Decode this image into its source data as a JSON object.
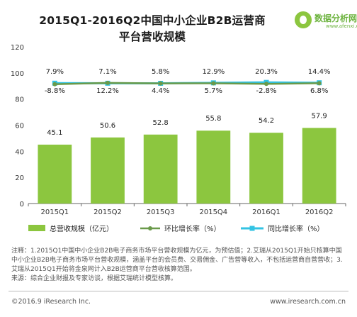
{
  "header": {
    "title_line1": "2015Q1-2016Q2中国中小企业B2B运营商",
    "title_line2": "平台营收规模"
  },
  "logo": {
    "name": "数据分析网",
    "url": "www.afenxi.com"
  },
  "chart_data": {
    "type": "bar",
    "categories": [
      "2015Q1",
      "2015Q2",
      "2015Q3",
      "2015Q4",
      "2016Q1",
      "2016Q2"
    ],
    "ylim": [
      0,
      120
    ],
    "yticks": [
      0,
      20,
      40,
      60,
      80,
      100,
      120
    ],
    "grid": false,
    "legend_position": "bottom",
    "series": [
      {
        "name": "总营收规模（亿元）",
        "kind": "bar",
        "color": "#8cc63f",
        "values": [
          45.1,
          50.6,
          52.8,
          55.8,
          54.2,
          57.9
        ],
        "labels": [
          "45.1",
          "50.6",
          "52.8",
          "55.8",
          "54.2",
          "57.9"
        ]
      },
      {
        "name": "环比增长率（%）",
        "kind": "line",
        "color": "#6a9a4a",
        "values": [
          -8.8,
          12.2,
          4.4,
          5.7,
          -2.8,
          6.8
        ],
        "labels": [
          "-8.8%",
          "12.2%",
          "4.4%",
          "5.7%",
          "-2.8%",
          "6.8%"
        ]
      },
      {
        "name": "同比增长率（%）",
        "kind": "line",
        "color": "#33c3e3",
        "values": [
          7.9,
          7.1,
          5.8,
          12.9,
          20.3,
          14.4
        ],
        "labels": [
          "7.9%",
          "7.1%",
          "5.8%",
          "12.9%",
          "20.3%",
          "14.4%"
        ]
      }
    ]
  },
  "notes": {
    "line1": "注释：1.2015Q1中国中小企业B2B电子商务市场平台营收规模为亿元，为预估值；2.艾瑞从2015Q1开始只核算中国中小企业B2B电子商务市场平台营收规模，涵盖平台的会员费、交易佣金、广告营等收入，不包括运营商自营营收；3.艾瑞从2015Q1开始将金泉网计入B2B运营商平台营收核算范围。",
    "line2": "来源：综合企业财报及专家访谈，根据艾瑞统计模型核算。"
  },
  "footer": {
    "copyright": "©2016.9 iResearch Inc.",
    "site": "www.iresearch.com.cn"
  }
}
